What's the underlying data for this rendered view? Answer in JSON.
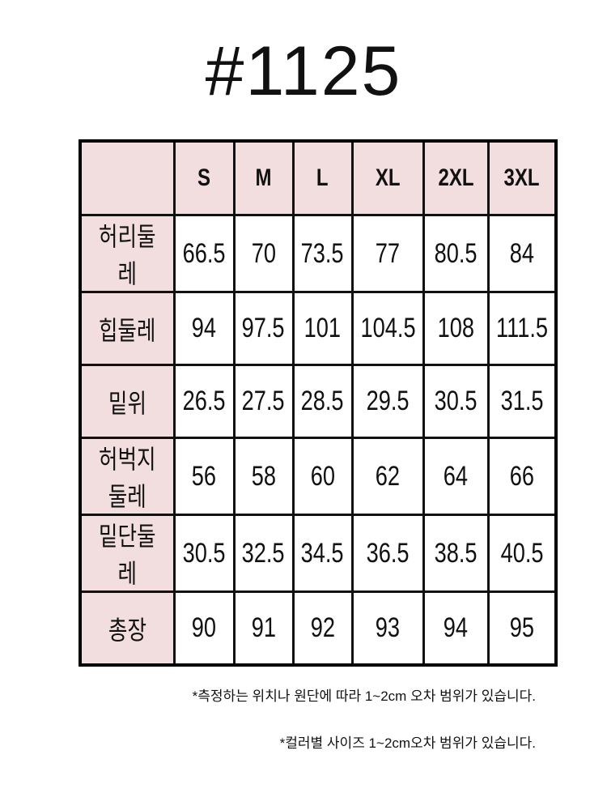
{
  "title": "#1125",
  "table": {
    "header_fill": "#f2dede",
    "columns": [
      "",
      "S",
      "M",
      "L",
      "XL",
      "2XL",
      "3XL"
    ],
    "rows": [
      {
        "label": "허리둘레",
        "values": [
          "66.5",
          "70",
          "73.5",
          "77",
          "80.5",
          "84"
        ]
      },
      {
        "label": "힙둘레",
        "values": [
          "94",
          "97.5",
          "101",
          "104.5",
          "108",
          "111.5"
        ]
      },
      {
        "label": "밑위",
        "values": [
          "26.5",
          "27.5",
          "28.5",
          "29.5",
          "30.5",
          "31.5"
        ]
      },
      {
        "label": "허벅지둘레",
        "values": [
          "56",
          "58",
          "60",
          "62",
          "64",
          "66"
        ]
      },
      {
        "label": "밑단둘레",
        "values": [
          "30.5",
          "32.5",
          "34.5",
          "36.5",
          "38.5",
          "40.5"
        ]
      },
      {
        "label": "총장",
        "values": [
          "90",
          "91",
          "92",
          "93",
          "94",
          "95"
        ]
      }
    ]
  },
  "notes": [
    "*측정하는 위치나 원단에 따라 1~2cm 오차 범위가 있습니다.",
    "*컬러별 사이즈 1~2cm오차 범위가 있습니다."
  ]
}
